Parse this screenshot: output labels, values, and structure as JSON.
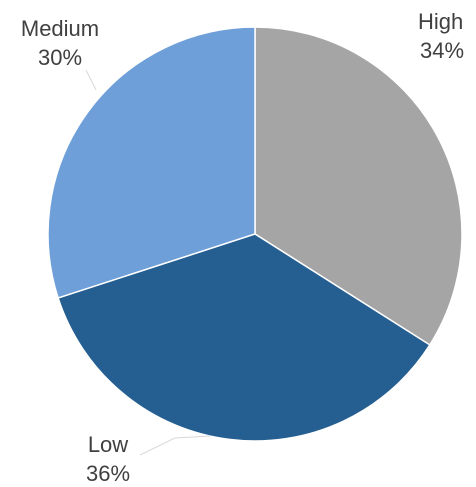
{
  "chart_data": {
    "type": "pie",
    "start": "12 o'clock, clockwise",
    "slices": [
      {
        "name": "High",
        "value": 34,
        "label": "34%",
        "color": "#a5a5a5"
      },
      {
        "name": "Low",
        "value": 36,
        "label": "36%",
        "color": "#255e91"
      },
      {
        "name": "Medium",
        "value": 30,
        "label": "30%",
        "color": "#6f9fd8"
      }
    ],
    "legend": "none"
  }
}
